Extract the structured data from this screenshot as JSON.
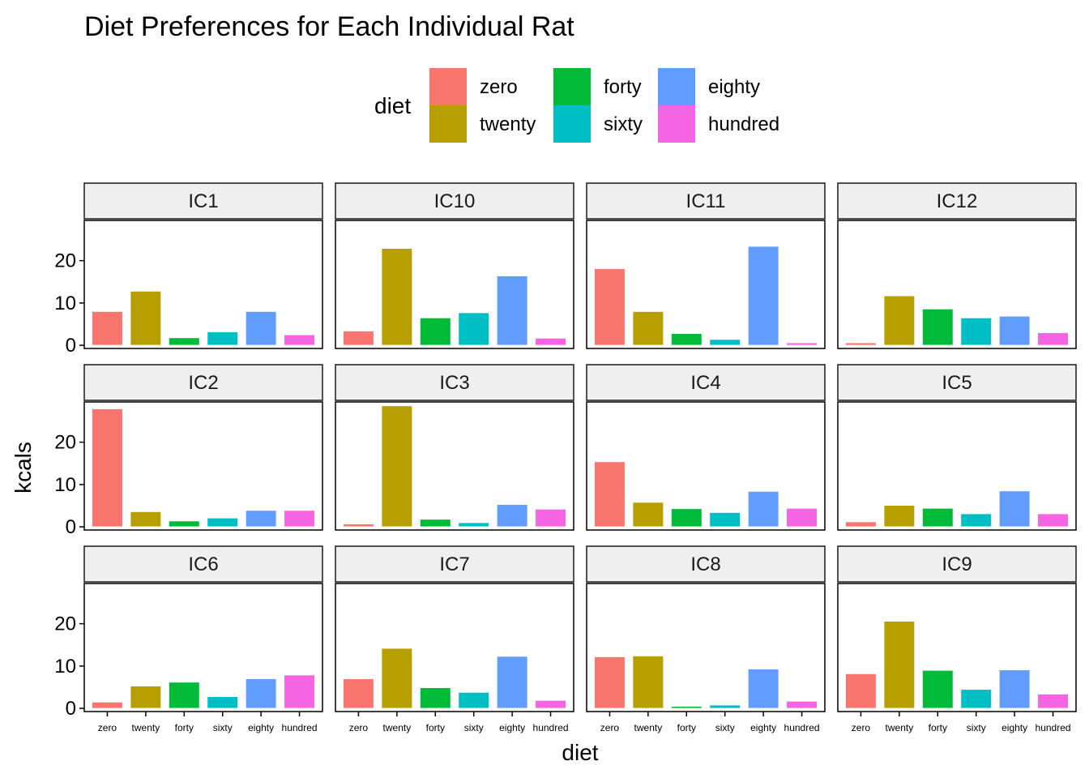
{
  "chart_data": {
    "type": "bar",
    "title": "Diet Preferences for Each Individual Rat",
    "xlabel": "diet",
    "ylabel": "kcals",
    "ylim": [
      0,
      28.7
    ],
    "yticks": [
      0,
      10,
      20
    ],
    "legend": {
      "title": "diet",
      "position": "top"
    },
    "categories": [
      "zero",
      "twenty",
      "forty",
      "sixty",
      "eighty",
      "hundred"
    ],
    "colors": {
      "zero": "#F8766D",
      "twenty": "#B79F00",
      "forty": "#00BA38",
      "sixty": "#00BFC4",
      "eighty": "#619CFF",
      "hundred": "#F564E3"
    },
    "facets": [
      {
        "name": "IC1",
        "values": [
          8.0,
          12.8,
          1.8,
          3.2,
          8.0,
          2.5
        ]
      },
      {
        "name": "IC10",
        "values": [
          3.4,
          22.9,
          6.5,
          7.7,
          16.4,
          1.7
        ]
      },
      {
        "name": "IC11",
        "values": [
          18.1,
          8.0,
          2.8,
          1.4,
          23.4,
          0.6
        ]
      },
      {
        "name": "IC12",
        "values": [
          0.6,
          11.7,
          8.6,
          6.5,
          6.9,
          3.0
        ]
      },
      {
        "name": "IC2",
        "values": [
          27.9,
          3.6,
          1.4,
          2.1,
          3.9,
          3.9
        ]
      },
      {
        "name": "IC3",
        "values": [
          0.7,
          28.6,
          1.8,
          1.0,
          5.3,
          4.2
        ]
      },
      {
        "name": "IC4",
        "values": [
          15.4,
          5.8,
          4.3,
          3.4,
          8.4,
          4.4
        ]
      },
      {
        "name": "IC5",
        "values": [
          1.2,
          5.1,
          4.4,
          3.1,
          8.5,
          3.1
        ]
      },
      {
        "name": "IC6",
        "values": [
          1.5,
          5.3,
          6.2,
          2.8,
          7.0,
          7.9
        ]
      },
      {
        "name": "IC7",
        "values": [
          7.0,
          14.2,
          4.9,
          3.8,
          12.3,
          1.9
        ]
      },
      {
        "name": "IC8",
        "values": [
          12.2,
          12.4,
          0.5,
          0.8,
          9.3,
          1.7
        ]
      },
      {
        "name": "IC9",
        "values": [
          8.2,
          20.6,
          9.0,
          4.5,
          9.1,
          3.4
        ]
      }
    ]
  }
}
